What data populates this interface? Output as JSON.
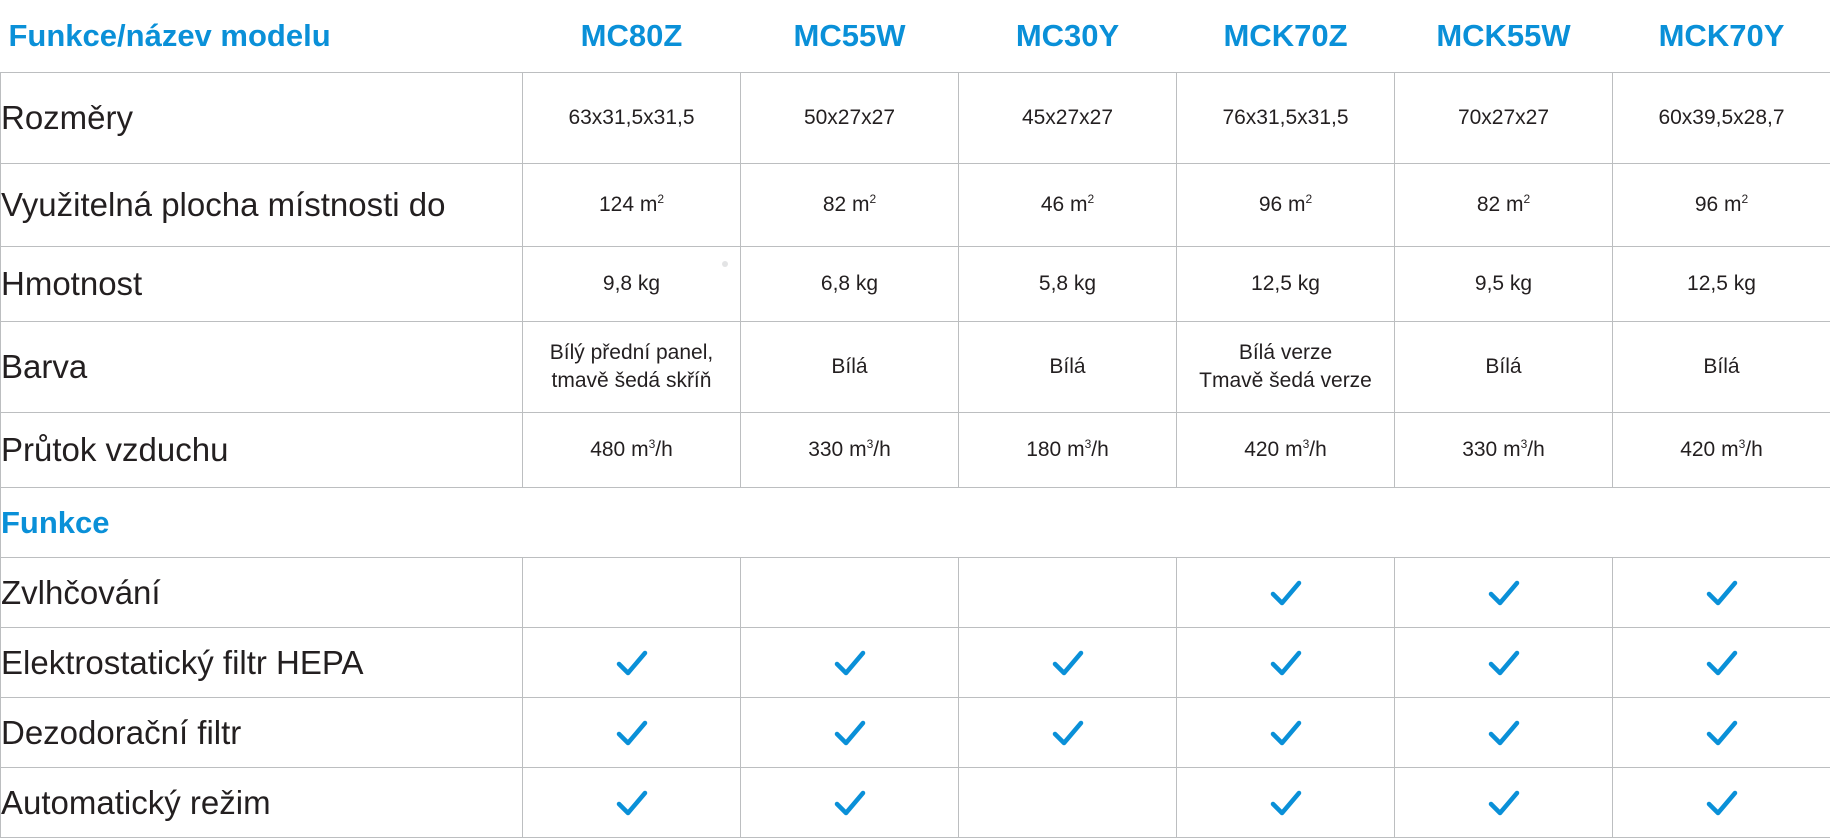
{
  "header": {
    "label": "Funkce/název modelu",
    "models": [
      "MC80Z",
      "MC55W",
      "MC30Y",
      "MCK70Z",
      "MCK55W",
      "MCK70Y"
    ]
  },
  "spec_rows": {
    "dimensions": {
      "label": "Rozměry",
      "values": [
        "63x31,5x31,5",
        "50x27x27",
        "45x27x27",
        "76x31,5x31,5",
        "70x27x27",
        "60x39,5x28,7"
      ]
    },
    "area": {
      "label": "Využitelná plocha místnosti do",
      "values": [
        "124",
        "82",
        "46",
        "96",
        "82",
        "96"
      ],
      "unit": "m",
      "unit_exp": "2"
    },
    "weight": {
      "label": "Hmotnost",
      "values": [
        "9,8 kg",
        "6,8 kg",
        "5,8 kg",
        "12,5 kg",
        "9,5 kg",
        "12,5 kg"
      ]
    },
    "color": {
      "label": "Barva",
      "values": [
        [
          "Bílý přední panel,",
          "tmavě šedá skříň"
        ],
        [
          "Bílá"
        ],
        [
          "Bílá"
        ],
        [
          "Bílá verze",
          "Tmavě šedá verze"
        ],
        [
          "Bílá"
        ],
        [
          "Bílá"
        ]
      ]
    },
    "airflow": {
      "label": "Průtok vzduchu",
      "values": [
        "480",
        "330",
        "180",
        "420",
        "330",
        "420"
      ],
      "unit": "m",
      "unit_exp": "3",
      "unit_suffix": "/h"
    }
  },
  "features_section": {
    "title": "Funkce"
  },
  "features": [
    {
      "label": "Zvlhčování",
      "checks": [
        false,
        false,
        false,
        true,
        true,
        true
      ]
    },
    {
      "label": "Elektrostatický filtr HEPA",
      "checks": [
        true,
        true,
        true,
        true,
        true,
        true
      ]
    },
    {
      "label": "Dezodorační filtr",
      "checks": [
        true,
        true,
        true,
        true,
        true,
        true
      ]
    },
    {
      "label": "Automatický režim",
      "checks": [
        true,
        true,
        false,
        true,
        true,
        true
      ]
    }
  ],
  "colors": {
    "accent": "#0a90d8",
    "text": "#231f20",
    "border": "#bcbec0"
  },
  "icons": {
    "check": "checkmark-icon"
  }
}
